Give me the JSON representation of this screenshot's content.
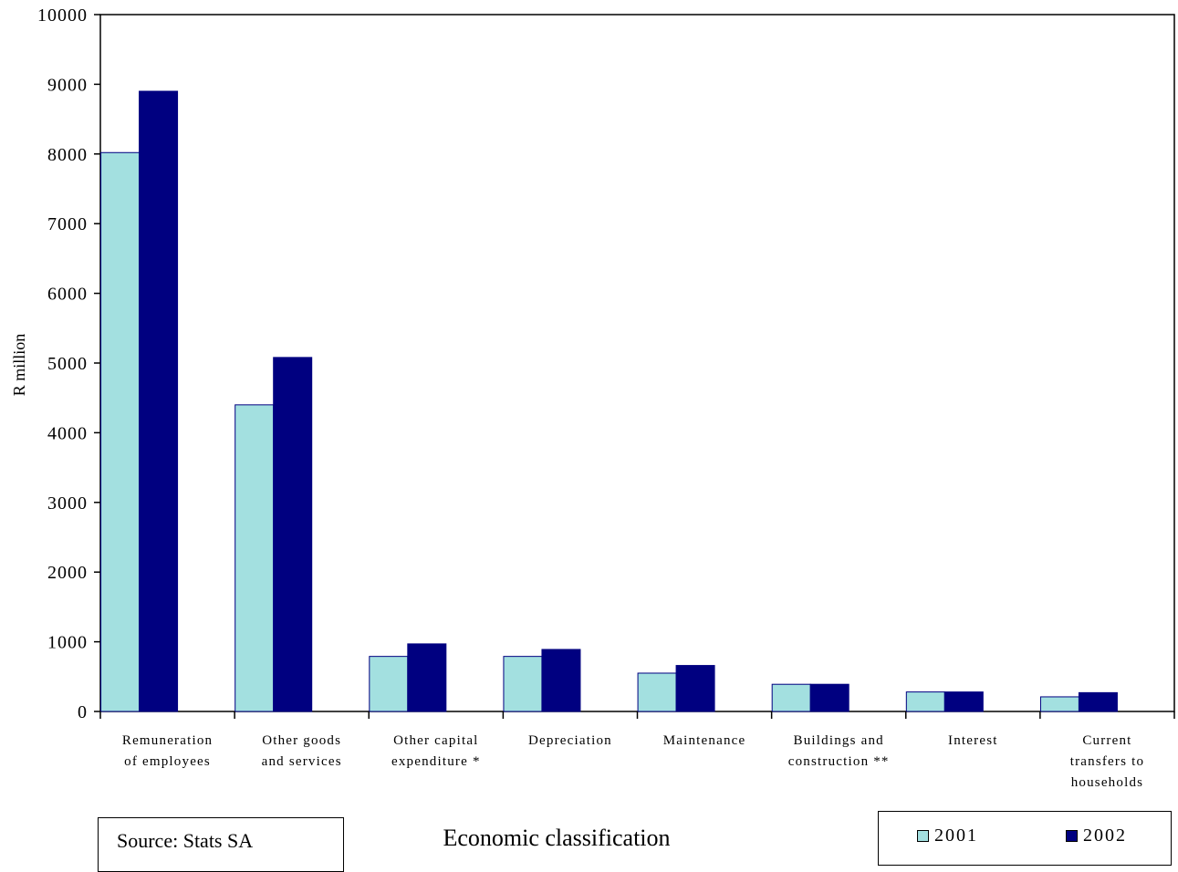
{
  "chart_data": {
    "type": "bar",
    "title": "",
    "ylabel": "R million",
    "xlabel": "Economic classification",
    "ylim": [
      0,
      10000
    ],
    "yticks": [
      0,
      1000,
      2000,
      3000,
      4000,
      5000,
      6000,
      7000,
      8000,
      9000,
      10000
    ],
    "categories": [
      [
        "Remuneration",
        "of employees"
      ],
      [
        "Other goods",
        "and services"
      ],
      [
        "Other capital",
        "expenditure *"
      ],
      [
        "Depreciation"
      ],
      [
        "Maintenance"
      ],
      [
        "Buildings and",
        "construction **"
      ],
      [
        "Interest"
      ],
      [
        "Current",
        "transfers to",
        "households"
      ]
    ],
    "series": [
      {
        "name": "2001",
        "color": "#a3e0e0",
        "values": [
          8020,
          4400,
          790,
          790,
          550,
          390,
          280,
          210
        ]
      },
      {
        "name": "2002",
        "color": "#000080",
        "values": [
          8900,
          5080,
          970,
          890,
          660,
          390,
          280,
          270
        ]
      }
    ],
    "grid": false,
    "legend_position": "bottom-right"
  },
  "source": "Source: Stats SA"
}
